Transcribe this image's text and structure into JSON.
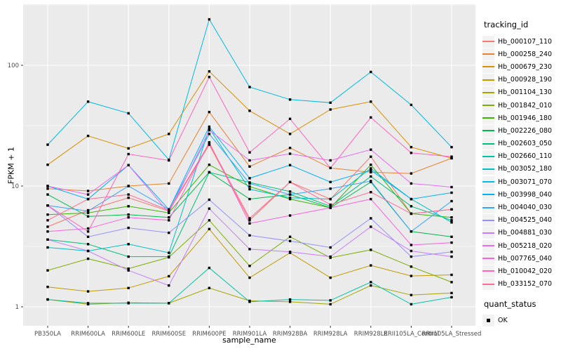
{
  "figure": {
    "background": "#FFFFFF",
    "panel_bg": "#EBEBEB",
    "grid_color": "#FFFFFF",
    "tick_color": "#333333",
    "axis_text_color": "#4D4D4D",
    "point_color": "#000000"
  },
  "axes": {
    "y_title": "FPKM + 1",
    "x_title": "sample_name",
    "y_tick_labels": [
      "1",
      "10",
      "100"
    ]
  },
  "legend": {
    "tracking_title": "tracking_id",
    "quant_title": "quant_status",
    "quant_ok_label": "OK"
  },
  "chart_data": {
    "type": "line",
    "title": "",
    "xlabel": "sample_name",
    "ylabel": "FPKM + 1",
    "yscale": "log10",
    "ylim": [
      0.7,
      310
    ],
    "y_major_ticks": [
      1,
      10,
      100
    ],
    "y_minor_ticks": [
      3.162,
      31.62,
      316.2
    ],
    "grid": true,
    "legend_position": "right",
    "point_shape": "filled-square",
    "point_color": "#000000",
    "categories": [
      "PB350LA",
      "RRIM600LA",
      "RRIM600LE",
      "RRIM600SE",
      "RRIM600PE",
      "RRIM901LA",
      "RRIM928BA",
      "RRIM928LA",
      "RRIM928LE",
      "RRII105LA_Control",
      "RRII105LA_Stressed"
    ],
    "series": [
      {
        "name": "Hb_000107_110",
        "color": "#F8766D",
        "values": [
          4.6,
          6.3,
          8.0,
          6.2,
          22,
          5.2,
          10.8,
          7.8,
          17.5,
          5.9,
          6.4
        ]
      },
      {
        "name": "Hb_000258_240",
        "color": "#EA8331",
        "values": [
          9.5,
          9.1,
          10.0,
          10.5,
          41,
          14.5,
          20.7,
          14.1,
          13.0,
          12.7,
          17.0
        ]
      },
      {
        "name": "Hb_000679_230",
        "color": "#D89000",
        "values": [
          15,
          26,
          20.5,
          27,
          89,
          42,
          27,
          43,
          50,
          21,
          17
        ]
      },
      {
        "name": "Hb_000928_190",
        "color": "#C09B00",
        "values": [
          1.46,
          1.34,
          1.43,
          1.79,
          4.4,
          1.74,
          2.8,
          1.74,
          2.2,
          1.8,
          1.84
        ]
      },
      {
        "name": "Hb_001104_130",
        "color": "#A3A500",
        "values": [
          1.15,
          1.05,
          1.08,
          1.07,
          1.43,
          1.12,
          1.1,
          1.05,
          1.5,
          1.25,
          1.3
        ]
      },
      {
        "name": "Hb_001842_010",
        "color": "#7CAE00",
        "values": [
          2.0,
          2.5,
          2.07,
          2.57,
          5.2,
          2.18,
          3.8,
          2.55,
          2.96,
          2.15,
          1.6
        ]
      },
      {
        "name": "Hb_001946_180",
        "color": "#39B600",
        "values": [
          5.8,
          6.0,
          6.8,
          6.0,
          15,
          9.9,
          7.8,
          6.6,
          15,
          5.9,
          5.5
        ]
      },
      {
        "name": "Hb_002226_080",
        "color": "#00BB4E",
        "values": [
          8.5,
          5.6,
          5.8,
          5.5,
          13,
          7.8,
          8.5,
          6.6,
          10.8,
          4.2,
          3.8
        ]
      },
      {
        "name": "Hb_002603_050",
        "color": "#00BF7D",
        "values": [
          3.6,
          3.3,
          2.6,
          2.6,
          13,
          10.7,
          9.0,
          6.8,
          12,
          6.8,
          5.2
        ]
      },
      {
        "name": "Hb_002660_110",
        "color": "#00C1A3",
        "values": [
          1.15,
          1.07,
          1.07,
          1.07,
          2.1,
          1.1,
          1.15,
          1.13,
          1.6,
          1.05,
          1.2
        ]
      },
      {
        "name": "Hb_003052_180",
        "color": "#00BFC4",
        "values": [
          3.1,
          2.9,
          3.3,
          2.8,
          30,
          9.4,
          8.0,
          7.8,
          14,
          7.8,
          5.0
        ]
      },
      {
        "name": "Hb_003071_070",
        "color": "#00BAE0",
        "values": [
          22,
          50,
          40,
          16.5,
          240,
          66,
          52,
          49,
          88,
          47,
          21
        ]
      },
      {
        "name": "Hb_003998_040",
        "color": "#00B0F6",
        "values": [
          10,
          7.8,
          14.9,
          6.4,
          31,
          11.6,
          14.9,
          10.8,
          13.5,
          7.8,
          8.8
        ]
      },
      {
        "name": "Hb_004040_030",
        "color": "#35A2FF",
        "values": [
          6.9,
          6.2,
          10.0,
          6.4,
          27,
          10.5,
          8.5,
          9.5,
          11,
          4.2,
          7.5
        ]
      },
      {
        "name": "Hb_004525_040",
        "color": "#9590FF",
        "values": [
          6.9,
          3.8,
          4.5,
          4.1,
          7.7,
          3.9,
          3.5,
          3.1,
          5.4,
          2.6,
          2.85
        ]
      },
      {
        "name": "Hb_004881_030",
        "color": "#C77CFF",
        "values": [
          3.6,
          2.9,
          2.0,
          1.5,
          6.5,
          3.0,
          2.85,
          2.6,
          4.6,
          2.9,
          2.6
        ]
      },
      {
        "name": "Hb_005218_020",
        "color": "#E76BF3",
        "values": [
          10,
          8.5,
          14.9,
          6.0,
          29,
          16.3,
          18.5,
          16.3,
          20,
          10.5,
          9.8
        ]
      },
      {
        "name": "Hb_007765_040",
        "color": "#FA62DB",
        "values": [
          4.2,
          4.45,
          5.5,
          5.2,
          23,
          4.9,
          5.7,
          6.6,
          7.8,
          3.25,
          3.4
        ]
      },
      {
        "name": "Hb_010042_020",
        "color": "#FF62BC",
        "values": [
          6.9,
          4.2,
          18.4,
          16.3,
          80,
          19,
          36,
          14.1,
          37,
          18.8,
          17.5
        ]
      },
      {
        "name": "Hb_033152_070",
        "color": "#FF6A98",
        "values": [
          5.2,
          7.8,
          8.5,
          6.3,
          22.5,
          5.4,
          10.8,
          7.0,
          8.9,
          5.9,
          6.4
        ]
      }
    ]
  }
}
